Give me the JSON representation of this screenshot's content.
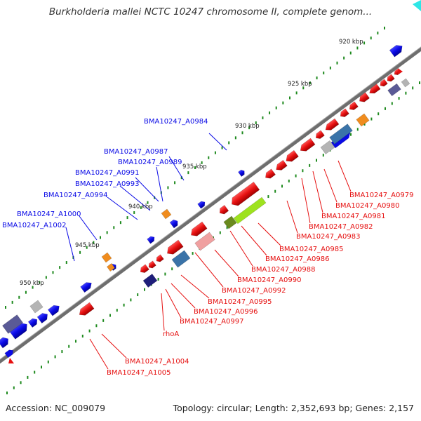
{
  "title": "Burkholderia mallei NCTC 10247 chromosome II, complete genom...",
  "footer": {
    "accession": "Accession: NC_009079",
    "topology": "Topology: circular; Length: 2,352,693 bp; Genes: 2,157"
  },
  "colors": {
    "forward": "#0a0ae6",
    "reverse": "#e61010",
    "backbone": "#6e6e6e",
    "ticks": "#1e8a1e",
    "orange": "#f08c1e",
    "light_green": "#9ee21e",
    "olive": "#6a8a1e",
    "navy": "#1e1e7a",
    "steel": "#3a73a8",
    "slate": "#5a5a96",
    "grey": "#b4b4b4",
    "pink": "#f0a0a0",
    "cyan": "#2ee6e6"
  },
  "scale_labels": [
    "920 kbp",
    "925 kbp",
    "930 kbp",
    "935 kbp",
    "940 kbp",
    "945 kbp",
    "950 kbp"
  ],
  "blue_labels": [
    "BMA10247_A0984",
    "BMA10247_A0987",
    "BMA10247_A0989",
    "BMA10247_A0991",
    "BMA10247_A0993",
    "BMA10247_A0994",
    "BMA10247_A1000",
    "BMA10247_A1002"
  ],
  "red_labels_right": [
    "BMA10247_A0979",
    "BMA10247_A0980",
    "BMA10247_A0981",
    "BMA10247_A0982",
    "BMA10247_A0983"
  ],
  "red_labels_mid": [
    "BMA10247_A0985",
    "BMA10247_A0986",
    "BMA10247_A0988",
    "BMA10247_A0990",
    "BMA10247_A0992",
    "BMA10247_A0995",
    "BMA10247_A0996",
    "BMA10247_A0997"
  ],
  "red_labels_low": [
    "rhoA",
    "BMA10247_A1004",
    "BMA10247_A1005"
  ]
}
